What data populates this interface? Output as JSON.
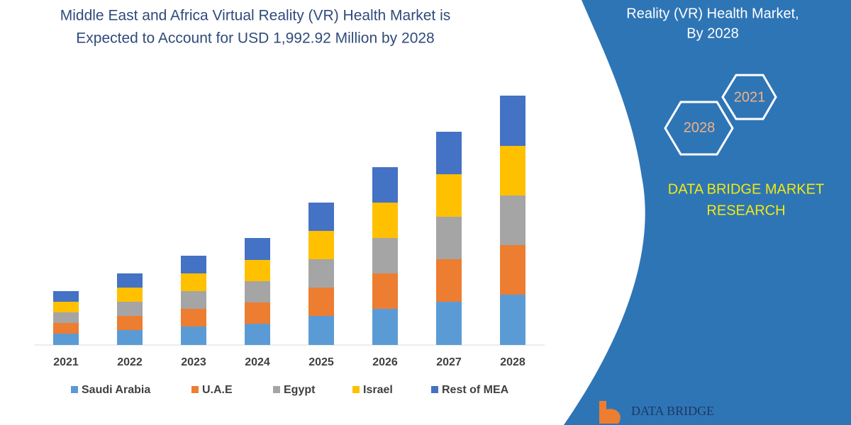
{
  "chart_data": {
    "type": "stacked-bar",
    "title": [
      "Middle East and Africa Virtual Reality (VR) Health Market is",
      "Expected to Account for USD 1,992.92 Million by 2028"
    ],
    "categories": [
      "2021",
      "2022",
      "2023",
      "2024",
      "2025",
      "2026",
      "2027",
      "2028"
    ],
    "series": [
      {
        "name": "Saudi Arabia",
        "color": "#5b9bd5",
        "values": [
          16,
          21,
          26,
          30,
          41,
          51,
          61,
          71
        ]
      },
      {
        "name": "U.A.E",
        "color": "#ed7d31",
        "values": [
          15,
          20,
          25,
          30,
          40,
          50,
          60,
          70
        ]
      },
      {
        "name": "Egypt",
        "color": "#a5a5a5",
        "values": [
          15,
          20,
          25,
          30,
          40,
          50,
          60,
          70
        ]
      },
      {
        "name": "Israel",
        "color": "#ffc000",
        "values": [
          15,
          20,
          25,
          30,
          40,
          50,
          60,
          70
        ]
      },
      {
        "name": "Rest of MEA",
        "color": "#4472c4",
        "values": [
          15,
          20,
          25,
          31,
          40,
          50,
          60,
          71
        ]
      }
    ]
  },
  "panel": {
    "heading": [
      "Reality (VR) Health Market,",
      "By 2028"
    ],
    "hexagons": [
      "2021",
      "2028"
    ],
    "brand": [
      "DATA BRIDGE MARKET",
      "RESEARCH"
    ],
    "logo": "DATA BRIDGE"
  }
}
